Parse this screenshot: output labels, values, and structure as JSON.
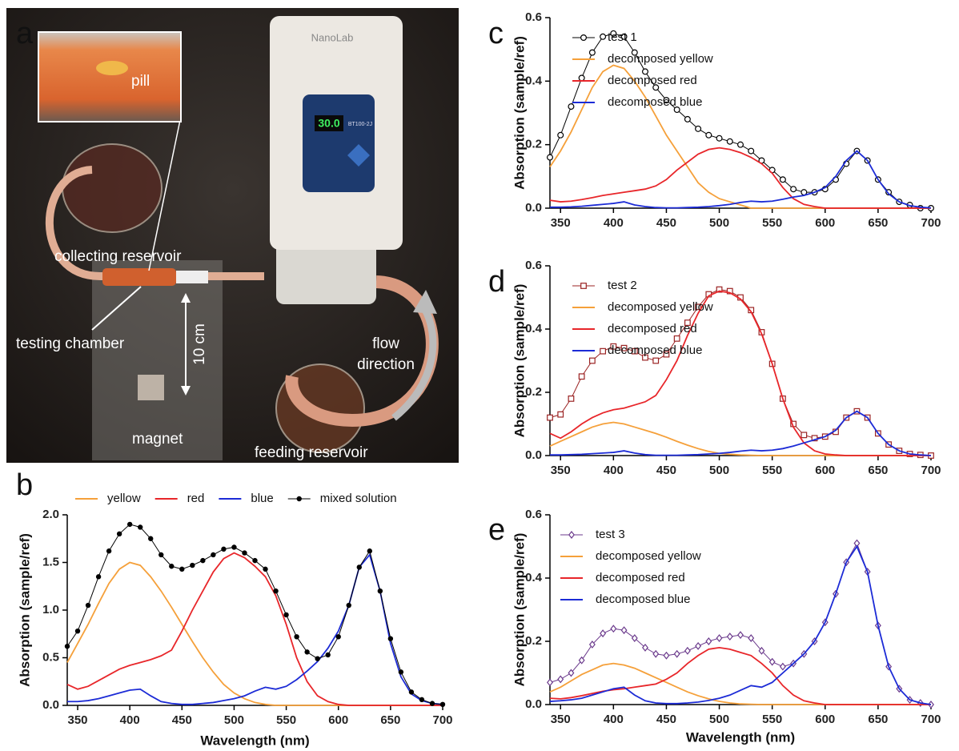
{
  "photo": {
    "panel_label": "a",
    "pill": "pill",
    "collecting_reservoir": "collecting reservoir",
    "testing_chamber": "testing chamber",
    "ten_cm": "10 cm",
    "flow_direction": [
      "flow",
      "direction"
    ],
    "magnet": "magnet",
    "feeding_reservoir": "feeding reservoir",
    "device_brand": "NanoLab",
    "display": "30.0",
    "model": "BT100-2J"
  },
  "chart_data": [
    {
      "type": "line",
      "panel_label": "b",
      "x_label": "Wavelength (nm)",
      "y_label": "Absorption (sample/ref)",
      "legend": "top",
      "x": [
        340,
        350,
        360,
        370,
        380,
        390,
        400,
        410,
        420,
        430,
        440,
        450,
        460,
        470,
        480,
        490,
        500,
        510,
        520,
        530,
        540,
        550,
        560,
        570,
        580,
        590,
        600,
        610,
        620,
        630,
        640,
        650,
        660,
        670,
        680,
        690,
        700
      ],
      "xlim": [
        340,
        700
      ],
      "xticks": [
        350,
        400,
        450,
        500,
        550,
        600,
        650,
        700
      ],
      "ylim": [
        0,
        2
      ],
      "yticks": [
        {
          "value": 0,
          "label": "0.0"
        },
        0.5,
        {
          "value": 1,
          "label": "1.0"
        },
        1.5,
        {
          "value": 2,
          "label": "2.0"
        }
      ],
      "series": [
        {
          "name": "yellow",
          "color": "#f5a03a",
          "values": [
            0.45,
            0.65,
            0.85,
            1.07,
            1.28,
            1.43,
            1.5,
            1.47,
            1.35,
            1.2,
            1.03,
            0.85,
            0.67,
            0.5,
            0.35,
            0.22,
            0.13,
            0.07,
            0.03,
            0.01,
            0,
            0,
            0,
            0,
            0,
            0,
            0,
            0,
            0,
            0,
            0,
            0,
            0,
            0,
            0,
            0,
            0
          ]
        },
        {
          "name": "red",
          "color": "#e8262a",
          "values": [
            0.22,
            0.17,
            0.2,
            0.26,
            0.32,
            0.38,
            0.42,
            0.45,
            0.48,
            0.52,
            0.58,
            0.78,
            1.0,
            1.2,
            1.4,
            1.54,
            1.6,
            1.55,
            1.46,
            1.35,
            1.15,
            0.85,
            0.5,
            0.25,
            0.1,
            0.04,
            0.01,
            0,
            0,
            0,
            0,
            0,
            0,
            0,
            0,
            0,
            0
          ]
        },
        {
          "name": "blue",
          "color": "#1c2bd6",
          "values": [
            0.04,
            0.04,
            0.05,
            0.07,
            0.1,
            0.13,
            0.16,
            0.17,
            0.1,
            0.04,
            0.02,
            0.01,
            0.01,
            0.02,
            0.03,
            0.05,
            0.07,
            0.1,
            0.15,
            0.19,
            0.17,
            0.2,
            0.27,
            0.36,
            0.46,
            0.6,
            0.78,
            1.05,
            1.45,
            1.58,
            1.2,
            0.65,
            0.3,
            0.12,
            0.05,
            0.02,
            0.01
          ]
        },
        {
          "name": "mixed solution",
          "color": "#000000",
          "marker": "dot",
          "values": [
            0.62,
            0.78,
            1.05,
            1.35,
            1.62,
            1.8,
            1.9,
            1.87,
            1.75,
            1.58,
            1.46,
            1.43,
            1.47,
            1.52,
            1.58,
            1.64,
            1.66,
            1.6,
            1.52,
            1.43,
            1.2,
            0.95,
            0.72,
            0.56,
            0.49,
            0.53,
            0.72,
            1.05,
            1.45,
            1.62,
            1.2,
            0.7,
            0.35,
            0.14,
            0.06,
            0.02,
            0.01
          ]
        }
      ]
    },
    {
      "type": "line",
      "panel_label": "c",
      "y_label": "Absorption (sample/ref)",
      "legend": "top-center",
      "x": [
        340,
        350,
        360,
        370,
        380,
        390,
        400,
        410,
        420,
        430,
        440,
        450,
        460,
        470,
        480,
        490,
        500,
        510,
        520,
        530,
        540,
        550,
        560,
        570,
        580,
        590,
        600,
        610,
        620,
        630,
        640,
        650,
        660,
        670,
        680,
        690,
        700
      ],
      "xlim": [
        340,
        700
      ],
      "xticks": [
        350,
        400,
        450,
        500,
        550,
        600,
        650,
        700
      ],
      "ylim": [
        0,
        0.6
      ],
      "yticks": [
        {
          "value": 0,
          "label": "0.0"
        },
        0.2,
        0.4,
        0.6
      ],
      "series": [
        {
          "name": "test 1",
          "color": "#000000",
          "marker": "circle",
          "values": [
            0.16,
            0.23,
            0.32,
            0.41,
            0.49,
            0.54,
            0.55,
            0.54,
            0.49,
            0.43,
            0.38,
            0.34,
            0.31,
            0.28,
            0.25,
            0.23,
            0.22,
            0.21,
            0.2,
            0.18,
            0.15,
            0.12,
            0.09,
            0.06,
            0.05,
            0.05,
            0.06,
            0.09,
            0.14,
            0.18,
            0.15,
            0.09,
            0.05,
            0.02,
            0.01,
            0,
            0
          ]
        },
        {
          "name": "decomposed yellow",
          "color": "#f5a03a",
          "values": [
            0.13,
            0.18,
            0.24,
            0.31,
            0.38,
            0.43,
            0.45,
            0.44,
            0.4,
            0.35,
            0.29,
            0.23,
            0.18,
            0.13,
            0.08,
            0.05,
            0.03,
            0.02,
            0.01,
            0,
            0,
            0,
            0,
            0,
            0,
            0,
            0,
            0,
            0,
            0,
            0,
            0,
            0,
            0,
            0,
            0,
            0
          ]
        },
        {
          "name": "decomposed red",
          "color": "#e8262a",
          "values": [
            0.025,
            0.02,
            0.022,
            0.027,
            0.033,
            0.04,
            0.045,
            0.05,
            0.055,
            0.06,
            0.07,
            0.09,
            0.12,
            0.145,
            0.17,
            0.185,
            0.19,
            0.185,
            0.175,
            0.16,
            0.14,
            0.11,
            0.065,
            0.03,
            0.012,
            0.005,
            0,
            0,
            0,
            0,
            0,
            0,
            0,
            0,
            0,
            0,
            0
          ]
        },
        {
          "name": "decomposed blue",
          "color": "#1c2bd6",
          "values": [
            0.003,
            0.003,
            0.004,
            0.006,
            0.009,
            0.012,
            0.015,
            0.02,
            0.01,
            0.005,
            0.002,
            0.001,
            0.001,
            0.002,
            0.003,
            0.005,
            0.008,
            0.012,
            0.018,
            0.022,
            0.02,
            0.022,
            0.028,
            0.035,
            0.04,
            0.05,
            0.065,
            0.1,
            0.15,
            0.18,
            0.15,
            0.09,
            0.045,
            0.02,
            0.008,
            0.003,
            0.001
          ]
        }
      ]
    },
    {
      "type": "line",
      "panel_label": "d",
      "y_label": "Absorption (sample/ref)",
      "legend": "top-center",
      "x": [
        340,
        350,
        360,
        370,
        380,
        390,
        400,
        410,
        420,
        430,
        440,
        450,
        460,
        470,
        480,
        490,
        500,
        510,
        520,
        530,
        540,
        550,
        560,
        570,
        580,
        590,
        600,
        610,
        620,
        630,
        640,
        650,
        660,
        670,
        680,
        690,
        700
      ],
      "xlim": [
        340,
        700
      ],
      "xticks": [
        350,
        400,
        450,
        500,
        550,
        600,
        650,
        700
      ],
      "ylim": [
        0,
        0.6
      ],
      "yticks": [
        {
          "value": 0,
          "label": "0.0"
        },
        0.2,
        0.4,
        0.6
      ],
      "series": [
        {
          "name": "test 2",
          "color": "#9b2323",
          "marker": "square",
          "values": [
            0.12,
            0.13,
            0.18,
            0.25,
            0.3,
            0.33,
            0.345,
            0.34,
            0.33,
            0.31,
            0.3,
            0.32,
            0.37,
            0.42,
            0.47,
            0.51,
            0.525,
            0.52,
            0.5,
            0.46,
            0.39,
            0.29,
            0.18,
            0.1,
            0.065,
            0.055,
            0.06,
            0.075,
            0.12,
            0.14,
            0.12,
            0.07,
            0.035,
            0.015,
            0.005,
            0.002,
            0
          ]
        },
        {
          "name": "decomposed yellow",
          "color": "#f5a03a",
          "values": [
            0.03,
            0.045,
            0.06,
            0.075,
            0.09,
            0.1,
            0.105,
            0.1,
            0.09,
            0.08,
            0.07,
            0.058,
            0.045,
            0.033,
            0.022,
            0.013,
            0.007,
            0.004,
            0.002,
            0.001,
            0,
            0,
            0,
            0,
            0,
            0,
            0,
            0,
            0,
            0,
            0,
            0,
            0,
            0,
            0,
            0,
            0
          ]
        },
        {
          "name": "decomposed red",
          "color": "#e8262a",
          "values": [
            0.07,
            0.055,
            0.075,
            0.1,
            0.12,
            0.135,
            0.145,
            0.15,
            0.16,
            0.17,
            0.19,
            0.24,
            0.3,
            0.38,
            0.45,
            0.505,
            0.52,
            0.515,
            0.495,
            0.455,
            0.385,
            0.29,
            0.18,
            0.09,
            0.04,
            0.015,
            0.005,
            0.002,
            0,
            0,
            0,
            0,
            0,
            0,
            0,
            0,
            0
          ]
        },
        {
          "name": "decomposed blue",
          "color": "#1c2bd6",
          "values": [
            0.002,
            0.002,
            0.003,
            0.004,
            0.006,
            0.008,
            0.01,
            0.015,
            0.008,
            0.003,
            0.001,
            0.001,
            0.001,
            0.002,
            0.003,
            0.005,
            0.007,
            0.01,
            0.014,
            0.017,
            0.015,
            0.017,
            0.022,
            0.03,
            0.04,
            0.05,
            0.06,
            0.08,
            0.12,
            0.14,
            0.12,
            0.07,
            0.035,
            0.015,
            0.005,
            0.002,
            0
          ]
        }
      ]
    },
    {
      "type": "line",
      "panel_label": "e",
      "x_label": "Wavelength (nm)",
      "y_label": "Absorption (sample/ref)",
      "legend": "top-left",
      "x": [
        340,
        350,
        360,
        370,
        380,
        390,
        400,
        410,
        420,
        430,
        440,
        450,
        460,
        470,
        480,
        490,
        500,
        510,
        520,
        530,
        540,
        550,
        560,
        570,
        580,
        590,
        600,
        610,
        620,
        630,
        640,
        650,
        660,
        670,
        680,
        690,
        700
      ],
      "xlim": [
        340,
        700
      ],
      "xticks": [
        350,
        400,
        450,
        500,
        550,
        600,
        650,
        700
      ],
      "ylim": [
        0,
        0.6
      ],
      "yticks": [
        {
          "value": 0,
          "label": "0.0"
        },
        0.2,
        0.4,
        0.6
      ],
      "series": [
        {
          "name": "test 3",
          "color": "#6b3a8c",
          "marker": "diamond",
          "values": [
            0.07,
            0.08,
            0.1,
            0.14,
            0.19,
            0.225,
            0.24,
            0.235,
            0.21,
            0.18,
            0.16,
            0.155,
            0.16,
            0.17,
            0.185,
            0.2,
            0.21,
            0.215,
            0.22,
            0.21,
            0.17,
            0.135,
            0.12,
            0.13,
            0.16,
            0.2,
            0.26,
            0.35,
            0.45,
            0.51,
            0.42,
            0.25,
            0.12,
            0.05,
            0.015,
            0.005,
            0
          ]
        },
        {
          "name": "decomposed yellow",
          "color": "#f5a03a",
          "values": [
            0.04,
            0.055,
            0.075,
            0.095,
            0.11,
            0.125,
            0.13,
            0.125,
            0.115,
            0.1,
            0.085,
            0.07,
            0.055,
            0.04,
            0.028,
            0.018,
            0.01,
            0.005,
            0.002,
            0.001,
            0,
            0,
            0,
            0,
            0,
            0,
            0,
            0,
            0,
            0,
            0,
            0,
            0,
            0,
            0,
            0,
            0
          ]
        },
        {
          "name": "decomposed red",
          "color": "#e8262a",
          "values": [
            0.02,
            0.018,
            0.022,
            0.028,
            0.035,
            0.042,
            0.047,
            0.05,
            0.055,
            0.06,
            0.065,
            0.08,
            0.1,
            0.13,
            0.155,
            0.175,
            0.18,
            0.175,
            0.165,
            0.155,
            0.13,
            0.1,
            0.06,
            0.03,
            0.012,
            0.005,
            0,
            0,
            0,
            0,
            0,
            0,
            0,
            0,
            0,
            0,
            0
          ]
        },
        {
          "name": "decomposed blue",
          "color": "#1c2bd6",
          "values": [
            0.01,
            0.012,
            0.015,
            0.02,
            0.03,
            0.04,
            0.05,
            0.055,
            0.03,
            0.012,
            0.005,
            0.003,
            0.003,
            0.005,
            0.008,
            0.013,
            0.02,
            0.03,
            0.045,
            0.06,
            0.055,
            0.07,
            0.1,
            0.13,
            0.16,
            0.2,
            0.26,
            0.35,
            0.45,
            0.5,
            0.42,
            0.25,
            0.12,
            0.05,
            0.015,
            0.005,
            0
          ]
        }
      ]
    }
  ]
}
